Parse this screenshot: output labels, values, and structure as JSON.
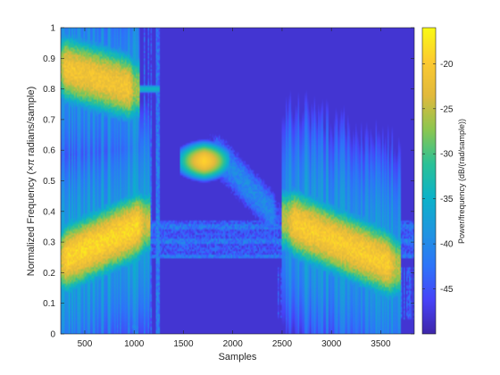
{
  "chart_data": {
    "type": "heatmap",
    "title": "",
    "xlabel": "Samples",
    "ylabel_parts": [
      "Normalized Frequency  (",
      "×π",
      " radians/sample)"
    ],
    "colorbar_label": "Power/frequency (dB/(rad/sample))",
    "xlim": [
      256,
      3840
    ],
    "ylim": [
      0,
      1
    ],
    "clim": [
      -50,
      -16
    ],
    "x_ticks": [
      500,
      1000,
      1500,
      2000,
      2500,
      3000,
      3500
    ],
    "x_tick_labels": [
      "500",
      "1000",
      "1500",
      "2000",
      "2500",
      "3000",
      "3500"
    ],
    "y_ticks": [
      0,
      0.1,
      0.2,
      0.3,
      0.4,
      0.5,
      0.6,
      0.7,
      0.8,
      0.9,
      1
    ],
    "y_tick_labels": [
      "0",
      "0.1",
      "0.2",
      "0.3",
      "0.4",
      "0.5",
      "0.6",
      "0.7",
      "0.8",
      "0.9",
      "1"
    ],
    "colorbar_ticks": [
      -45,
      -40,
      -35,
      -30,
      -25,
      -20
    ],
    "colorbar_tick_labels": [
      "-45",
      "-40",
      "-35",
      "-30",
      "-25",
      "-20"
    ],
    "colormap": "parula",
    "colormap_stops": [
      "#3e26a8",
      "#4743f8",
      "#2d74f9",
      "#1f95e0",
      "#0cb2c9",
      "#2bc196",
      "#8bc650",
      "#e1b93c",
      "#fcca31",
      "#f9fa14"
    ],
    "background_level_db": -48,
    "features": [
      {
        "kind": "chirp",
        "x": [
          256,
          1000
        ],
        "y": [
          0.87,
          0.8
        ],
        "peak_db": -21
      },
      {
        "kind": "tone",
        "x": [
          1000,
          1200
        ],
        "y": [
          0.8,
          0.8
        ],
        "peak_db": -34
      },
      {
        "kind": "blob",
        "x": [
          1520,
          1900
        ],
        "y": [
          0.53,
          0.6
        ],
        "peak_db": -19
      },
      {
        "kind": "chirp",
        "x": [
          256,
          1100
        ],
        "y": [
          0.24,
          0.36
        ],
        "peak_db": -19
      },
      {
        "kind": "chirp",
        "x": [
          2550,
          3650
        ],
        "y": [
          0.37,
          0.22
        ],
        "peak_db": -20
      },
      {
        "kind": "chirp",
        "x": [
          1800,
          2450
        ],
        "y": [
          0.6,
          0.38
        ],
        "peak_db": -40
      },
      {
        "kind": "band",
        "x": [
          1200,
          3840
        ],
        "y": [
          0.25,
          0.37
        ],
        "peak_db": -42
      },
      {
        "kind": "noise",
        "x": [
          256,
          1200
        ],
        "y": [
          0,
          1
        ],
        "peak_db": -42
      },
      {
        "kind": "noise",
        "x": [
          2500,
          3840
        ],
        "y": [
          0.05,
          0.22
        ],
        "peak_db": -44
      }
    ]
  }
}
